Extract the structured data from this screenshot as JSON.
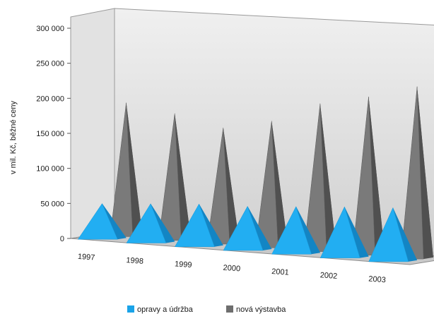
{
  "chart_data": {
    "type": "bar",
    "style": "3d-pyramid",
    "title": "",
    "xlabel": "",
    "ylabel": "v mil. Kč, běžné ceny",
    "ylim": [
      0,
      300000
    ],
    "yticks": [
      "300 000",
      "250 000",
      "200 000",
      "150 000",
      "100 000",
      "50 000",
      "0"
    ],
    "yvalues": [
      300000,
      250000,
      200000,
      150000,
      100000,
      50000,
      0
    ],
    "categories": [
      "1997",
      "1998",
      "1999",
      "2000",
      "2001",
      "2002",
      "2003"
    ],
    "series": [
      {
        "name": "opravy a údržba",
        "color": "#1aa3e8",
        "values": [
          50000,
          55000,
          60000,
          62000,
          67000,
          72000,
          76000
        ]
      },
      {
        "name": "nová výstavba",
        "color": "#6e6e6e",
        "values": [
          190000,
          180000,
          165000,
          180000,
          210000,
          225000,
          245000
        ]
      }
    ],
    "grid": false,
    "legend_position": "bottom"
  }
}
